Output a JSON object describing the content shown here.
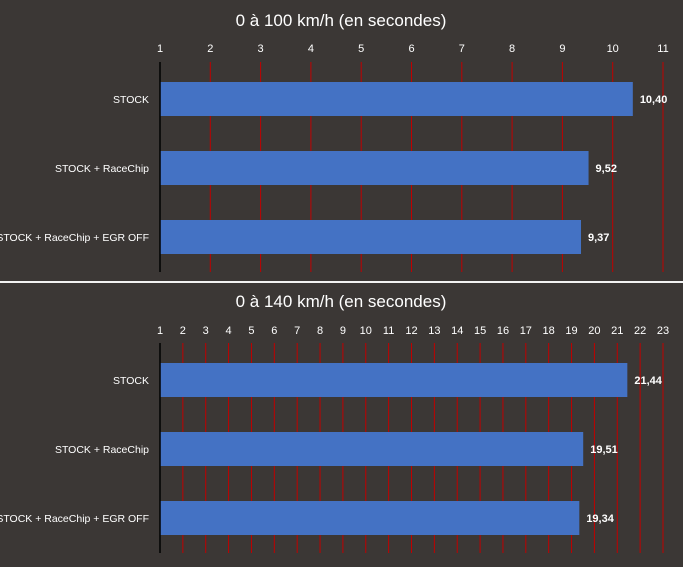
{
  "chart_data": [
    {
      "type": "bar",
      "orientation": "horizontal",
      "title": "0 à 100 km/h (en secondes)",
      "categories": [
        "STOCK",
        "STOCK + RaceChip",
        "STOCK + RaceChip + EGR OFF"
      ],
      "values": [
        10.4,
        9.52,
        9.37
      ],
      "value_labels": [
        "10,40",
        "9,52",
        "9,37"
      ],
      "xlim": [
        1,
        11
      ],
      "x_ticks": [
        1,
        2,
        3,
        4,
        5,
        6,
        7,
        8,
        9,
        10,
        11
      ],
      "x_axis_position": "top",
      "grid": true,
      "colors": {
        "bar": "#4472c4",
        "grid": "#c00000",
        "background": "#3b3735",
        "text": "#ffffff"
      }
    },
    {
      "type": "bar",
      "orientation": "horizontal",
      "title": "0 à 140 km/h (en secondes)",
      "categories": [
        "STOCK",
        "STOCK + RaceChip",
        "STOCK + RaceChip + EGR OFF"
      ],
      "values": [
        21.44,
        19.51,
        19.34
      ],
      "value_labels": [
        "21,44",
        "19,51",
        "19,34"
      ],
      "xlim": [
        1,
        23
      ],
      "x_ticks": [
        1,
        2,
        3,
        4,
        5,
        6,
        7,
        8,
        9,
        10,
        11,
        12,
        13,
        14,
        15,
        16,
        17,
        18,
        19,
        20,
        21,
        22,
        23
      ],
      "x_axis_position": "top",
      "grid": true,
      "colors": {
        "bar": "#4472c4",
        "grid": "#c00000",
        "background": "#3b3735",
        "text": "#ffffff"
      }
    }
  ]
}
